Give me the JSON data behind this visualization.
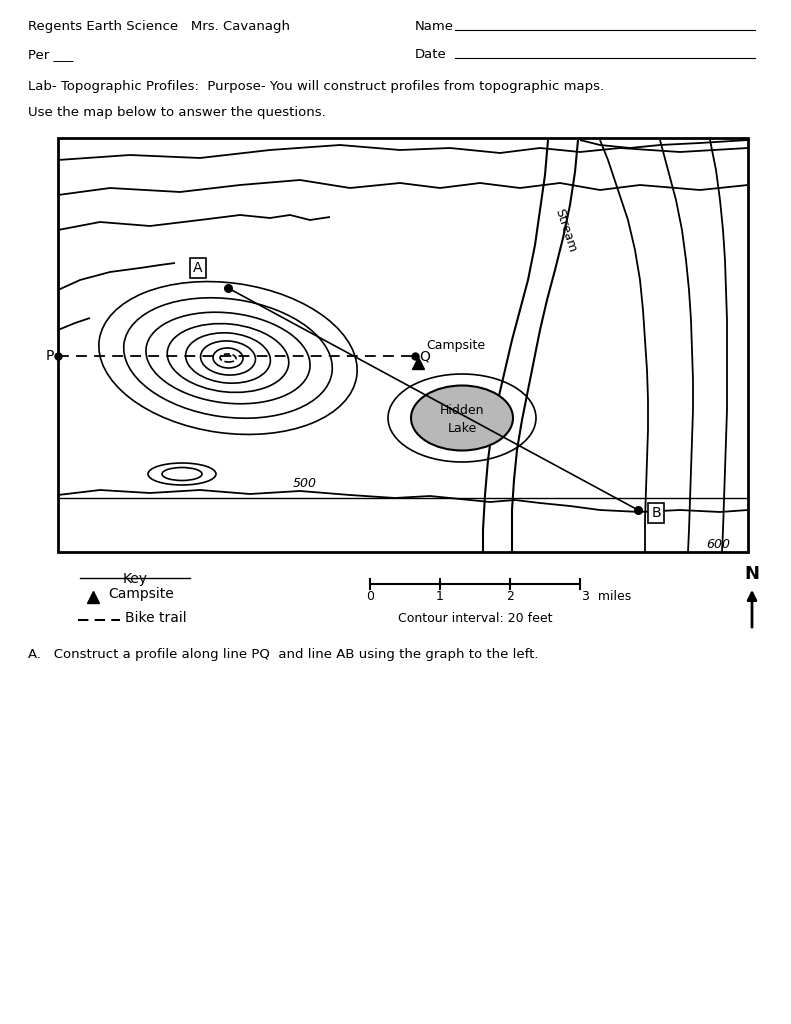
{
  "title_left": "Regents Earth Science   Mrs. Cavanagh",
  "name_label": "Name",
  "per_label": "Per ___",
  "date_label": "Date",
  "lab_purpose": "Lab- Topographic Profiles:  Purpose- You will construct profiles from topographic maps.",
  "instruction": "Use the map below to answer the questions.",
  "key_title": "Key",
  "contour_label": "Contour interval: 20 feet",
  "question_a": "A.   Construct a profile along line PQ  and line AB using the graph to the left.",
  "fig_bg": "#ffffff"
}
